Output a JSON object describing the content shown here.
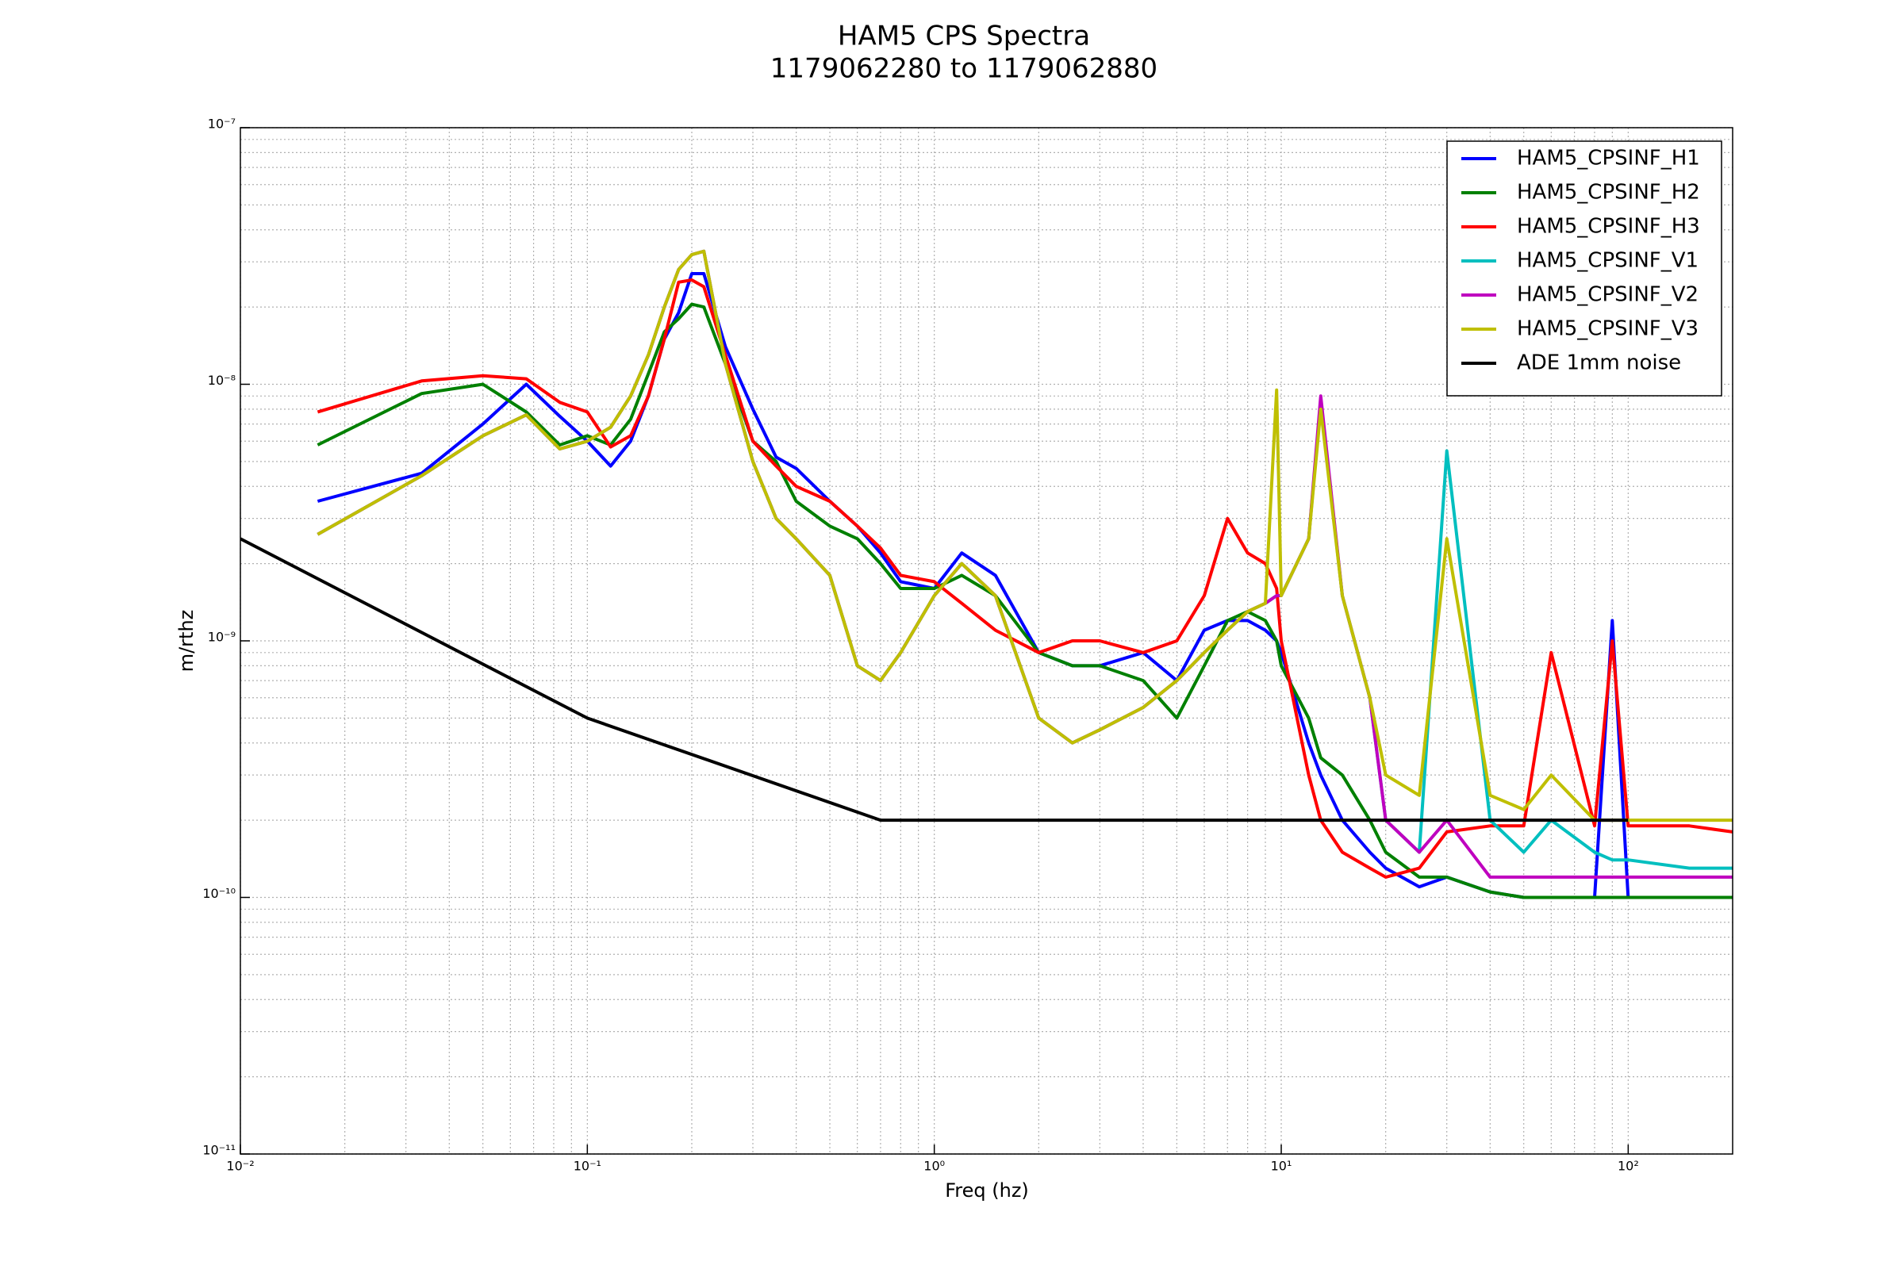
{
  "chart_data": {
    "type": "line",
    "title": "HAM5 CPS Spectra",
    "subtitle": "1179062280 to 1179062880",
    "xlabel": "Freq (hz)",
    "ylabel": "m/rthz",
    "xscale": "log",
    "yscale": "log",
    "grid": true,
    "minor_grid": true,
    "legend": "upper right",
    "xlim": [
      0.01,
      200
    ],
    "ylim": [
      1e-11,
      1e-07
    ],
    "xticks": [
      {
        "value": 0.01,
        "label": "10⁻²"
      },
      {
        "value": 0.1,
        "label": "10⁻¹"
      },
      {
        "value": 1,
        "label": "10⁰"
      },
      {
        "value": 10,
        "label": "10¹"
      },
      {
        "value": 100,
        "label": "10²"
      }
    ],
    "yticks": [
      {
        "value": 1e-11,
        "label": "10⁻¹¹"
      },
      {
        "value": 1e-10,
        "label": "10⁻¹⁰"
      },
      {
        "value": 1e-09,
        "label": "10⁻⁹"
      },
      {
        "value": 1e-08,
        "label": "10⁻⁸"
      },
      {
        "value": 1e-07,
        "label": "10⁻⁷"
      }
    ],
    "x": [
      0.0167,
      0.0333,
      0.05,
      0.0667,
      0.0833,
      0.1,
      0.1167,
      0.1333,
      0.15,
      0.1667,
      0.1833,
      0.2,
      0.2167,
      0.25,
      0.3,
      0.35,
      0.4,
      0.5,
      0.6,
      0.7,
      0.8,
      1,
      1.2,
      1.5,
      2,
      2.5,
      3,
      4,
      5,
      6,
      7,
      8,
      9,
      9.7,
      10,
      12,
      13,
      15,
      18,
      20,
      25,
      30,
      40,
      50,
      60,
      80,
      90,
      100,
      150,
      200
    ],
    "series": [
      {
        "name": "HAM5_CPSINF_H1",
        "color": "#0000ff",
        "values": [
          3.5e-09,
          4.5e-09,
          7e-09,
          1e-08,
          7.5e-09,
          6e-09,
          4.8e-09,
          6e-09,
          9e-09,
          1.5e-08,
          1.9e-08,
          2.7e-08,
          2.7e-08,
          1.4e-08,
          8e-09,
          5.2e-09,
          4.7e-09,
          3.5e-09,
          2.8e-09,
          2.2e-09,
          1.7e-09,
          1.6e-09,
          2.2e-09,
          1.8e-09,
          9e-10,
          8e-10,
          8e-10,
          9e-10,
          7e-10,
          1.1e-09,
          1.2e-09,
          1.2e-09,
          1.1e-09,
          1e-09,
          9e-10,
          4e-10,
          3e-10,
          2e-10,
          1.5e-10,
          1.3e-10,
          1.1e-10,
          1.2e-10,
          1.05e-10,
          1e-10,
          1e-10,
          1e-10,
          1.2e-09,
          1e-10,
          1e-10,
          1e-10
        ]
      },
      {
        "name": "HAM5_CPSINF_H2",
        "color": "#008000",
        "values": [
          5.8e-09,
          9.2e-09,
          1e-08,
          7.8e-09,
          5.8e-09,
          6.3e-09,
          5.8e-09,
          7.3e-09,
          1.1e-08,
          1.6e-08,
          1.8e-08,
          2.05e-08,
          2e-08,
          1.2e-08,
          6e-09,
          5e-09,
          3.5e-09,
          2.8e-09,
          2.5e-09,
          2e-09,
          1.6e-09,
          1.6e-09,
          1.8e-09,
          1.5e-09,
          9e-10,
          8e-10,
          8e-10,
          7e-10,
          5e-10,
          8e-10,
          1.2e-09,
          1.3e-09,
          1.2e-09,
          1e-09,
          8e-10,
          5e-10,
          3.5e-10,
          3e-10,
          2e-10,
          1.5e-10,
          1.2e-10,
          1.2e-10,
          1.05e-10,
          1e-10,
          1e-10,
          1e-10,
          1e-10,
          1e-10,
          1e-10,
          1e-10
        ]
      },
      {
        "name": "HAM5_CPSINF_H3",
        "color": "#ff0000",
        "values": [
          7.8e-09,
          1.03e-08,
          1.08e-08,
          1.05e-08,
          8.5e-09,
          7.8e-09,
          5.7e-09,
          6.3e-09,
          9e-09,
          1.5e-08,
          2.5e-08,
          2.55e-08,
          2.4e-08,
          1.3e-08,
          6e-09,
          4.8e-09,
          4e-09,
          3.5e-09,
          2.8e-09,
          2.3e-09,
          1.8e-09,
          1.7e-09,
          1.4e-09,
          1.1e-09,
          9e-10,
          1e-09,
          1e-09,
          9e-10,
          1e-09,
          1.5e-09,
          3e-09,
          2.2e-09,
          2e-09,
          1.6e-09,
          1e-09,
          3e-10,
          2e-10,
          1.5e-10,
          1.3e-10,
          1.2e-10,
          1.3e-10,
          1.8e-10,
          1.9e-10,
          1.9e-10,
          9e-10,
          1.9e-10,
          1e-09,
          1.9e-10,
          1.9e-10,
          1.8e-10
        ]
      },
      {
        "name": "HAM5_CPSINF_V1",
        "color": "#00bfbf",
        "values": [
          2.6e-09,
          4.4e-09,
          6.3e-09,
          7.6e-09,
          5.6e-09,
          6e-09,
          6.8e-09,
          9e-09,
          1.3e-08,
          2e-08,
          2.8e-08,
          3.2e-08,
          3.3e-08,
          1.2e-08,
          5e-09,
          3e-09,
          2.5e-09,
          1.8e-09,
          8e-10,
          7e-10,
          9e-10,
          1.5e-09,
          2e-09,
          1.5e-09,
          5e-10,
          4e-10,
          4.5e-10,
          5.5e-10,
          7e-10,
          9e-10,
          1.1e-09,
          1.3e-09,
          1.4e-09,
          1.5e-09,
          1.5e-09,
          2.5e-09,
          8.5e-09,
          1.5e-09,
          6e-10,
          2e-10,
          1.5e-10,
          5.5e-09,
          2e-10,
          1.5e-10,
          2e-10,
          1.5e-10,
          1.4e-10,
          1.4e-10,
          1.3e-10,
          1.3e-10
        ]
      },
      {
        "name": "HAM5_CPSINF_V2",
        "color": "#bf00bf",
        "values": [
          2.6e-09,
          4.4e-09,
          6.3e-09,
          7.6e-09,
          5.6e-09,
          6e-09,
          6.8e-09,
          9e-09,
          1.3e-08,
          2e-08,
          2.8e-08,
          3.2e-08,
          3.3e-08,
          1.2e-08,
          5e-09,
          3e-09,
          2.5e-09,
          1.8e-09,
          8e-10,
          7e-10,
          9e-10,
          1.5e-09,
          2e-09,
          1.5e-09,
          5e-10,
          4e-10,
          4.5e-10,
          5.5e-10,
          7e-10,
          9e-10,
          1.1e-09,
          1.3e-09,
          1.4e-09,
          1.5e-09,
          1.5e-09,
          2.5e-09,
          9e-09,
          1.5e-09,
          6e-10,
          2e-10,
          1.5e-10,
          2e-10,
          1.2e-10,
          1.2e-10,
          1.2e-10,
          1.2e-10,
          1.2e-10,
          1.2e-10,
          1.2e-10,
          1.2e-10
        ]
      },
      {
        "name": "HAM5_CPSINF_V3",
        "color": "#bfbf00",
        "values": [
          2.6e-09,
          4.4e-09,
          6.3e-09,
          7.6e-09,
          5.6e-09,
          6e-09,
          6.8e-09,
          9e-09,
          1.3e-08,
          2e-08,
          2.8e-08,
          3.2e-08,
          3.3e-08,
          1.2e-08,
          5e-09,
          3e-09,
          2.5e-09,
          1.8e-09,
          8e-10,
          7e-10,
          9e-10,
          1.5e-09,
          2e-09,
          1.5e-09,
          5e-10,
          4e-10,
          4.5e-10,
          5.5e-10,
          7e-10,
          9e-10,
          1.1e-09,
          1.3e-09,
          1.4e-09,
          9.5e-09,
          1.5e-09,
          2.5e-09,
          8e-09,
          1.5e-09,
          6e-10,
          3e-10,
          2.5e-10,
          2.5e-09,
          2.5e-10,
          2.2e-10,
          3e-10,
          2e-10,
          2e-10,
          2e-10,
          2e-10,
          2e-10
        ]
      },
      {
        "name": "ADE 1mm noise",
        "color": "#000000",
        "x": [
          0.01,
          0.1,
          0.7,
          100
        ],
        "values": [
          2.5e-09,
          5e-10,
          2e-10,
          2e-10
        ]
      }
    ]
  }
}
